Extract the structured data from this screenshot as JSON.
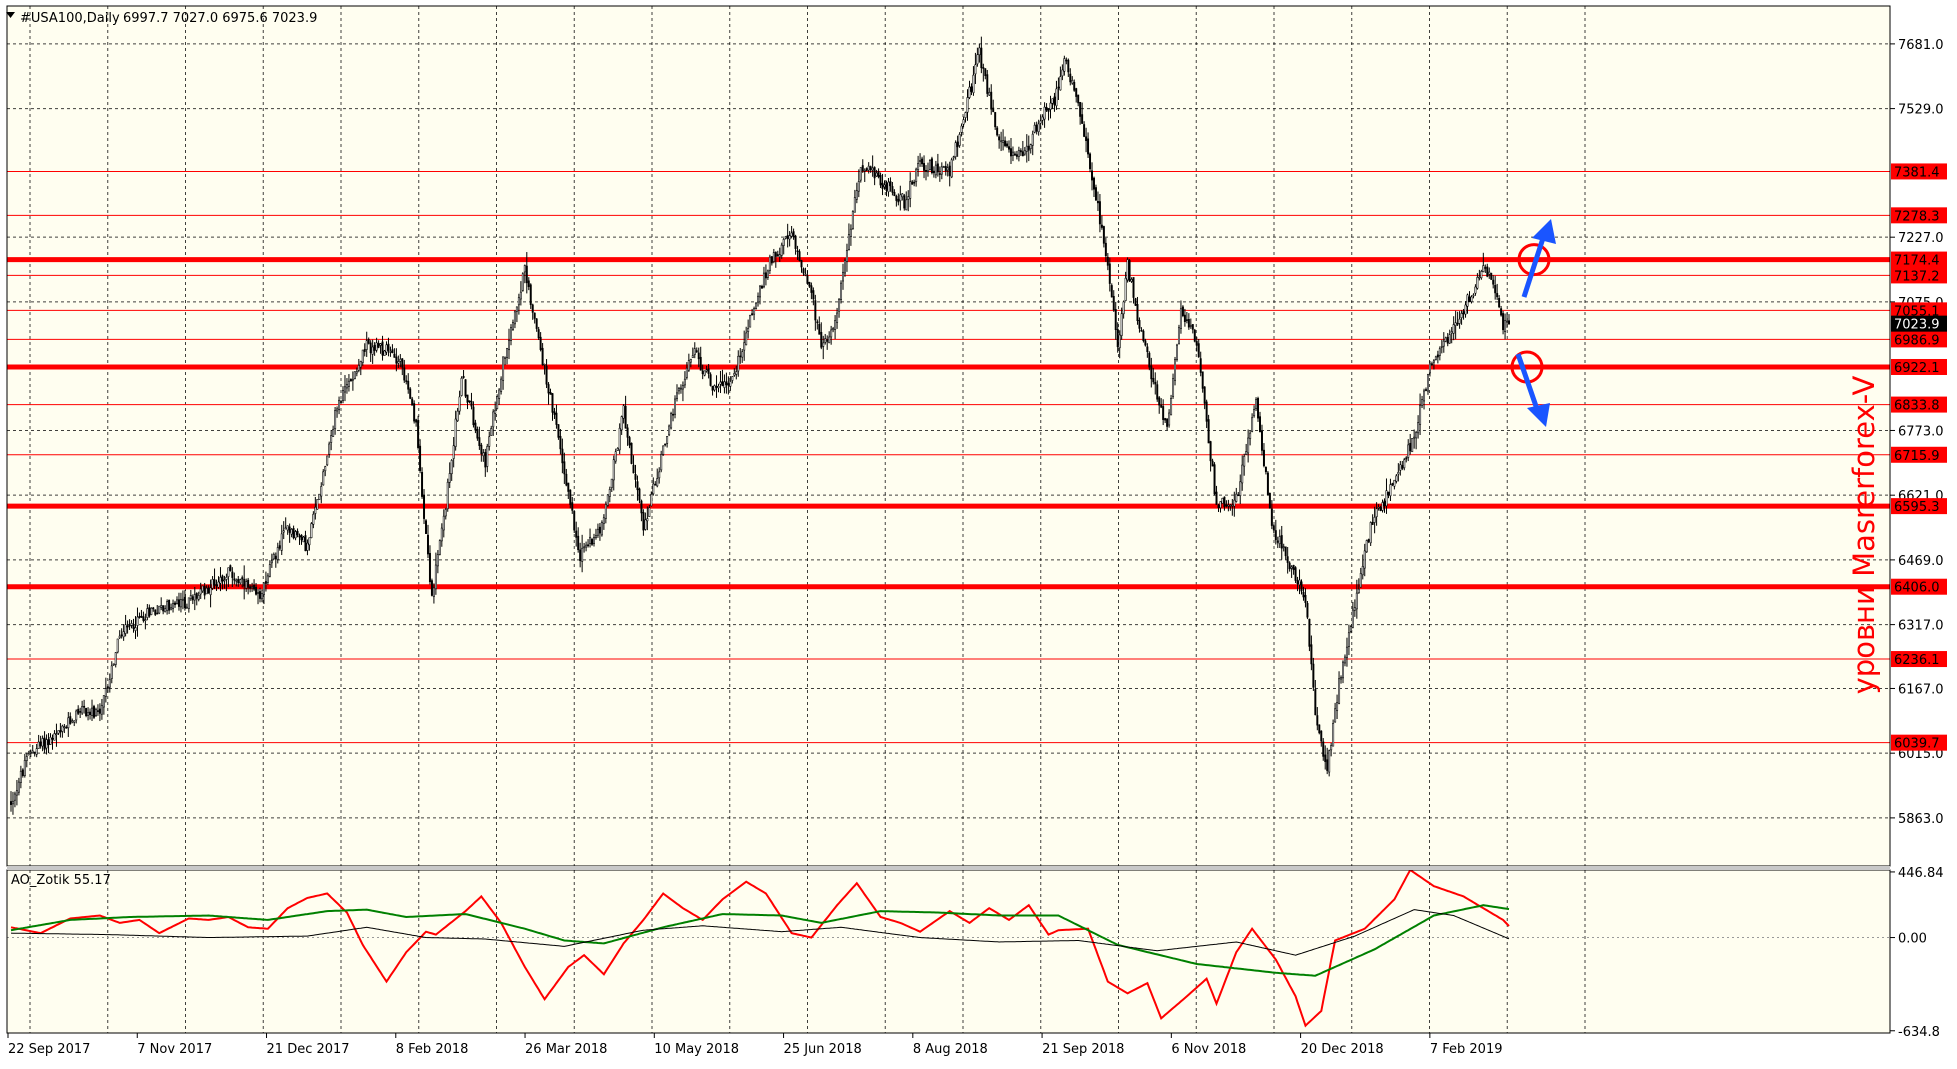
{
  "header": {
    "symbol": "#USA100,Daily",
    "ohlc": "6997.7 7027.0 6975.6 7023.9"
  },
  "watermark": "уровни Masrerforex-V",
  "colors": {
    "background": "#fffef0",
    "grid": "#000000",
    "level_line": "#ff0000",
    "candle_up": "#ffffff",
    "candle_down": "#000000",
    "arrow": "#1a55ff",
    "ao_red": "#ff0000",
    "ao_green": "#008000",
    "ao_black": "#000000"
  },
  "chart_data": [
    {
      "type": "candlestick",
      "panel": "price",
      "ylim": [
        5750,
        7770
      ],
      "y_ticks": [
        "7681.0",
        "7529.0",
        "7227.0",
        "7075.0",
        "6773.0",
        "6621.0",
        "6469.0",
        "6317.0",
        "6167.0",
        "6015.0",
        "5863.0"
      ],
      "x_labels": [
        "22 Sep 2017",
        "7 Nov 2017",
        "21 Dec 2017",
        "8 Feb 2018",
        "26 Mar 2018",
        "10 May 2018",
        "25 Jun 2018",
        "8 Aug 2018",
        "21 Sep 2018",
        "6 Nov 2018",
        "20 Dec 2018",
        "7 Feb 2019"
      ],
      "levels": [
        {
          "value": 7381.4,
          "label": "7381.4",
          "bold": false
        },
        {
          "value": 7278.3,
          "label": "7278.3",
          "bold": false
        },
        {
          "value": 7174.4,
          "label": "7174.4",
          "bold": true
        },
        {
          "value": 7137.2,
          "label": "7137.2",
          "bold": false
        },
        {
          "value": 7055.1,
          "label": "7055.1",
          "bold": false
        },
        {
          "value": 6986.9,
          "label": "6986.9",
          "bold": false
        },
        {
          "value": 6922.1,
          "label": "6922.1",
          "bold": true
        },
        {
          "value": 6833.8,
          "label": "6833.8",
          "bold": false
        },
        {
          "value": 6715.9,
          "label": "6715.9",
          "bold": false
        },
        {
          "value": 6595.3,
          "label": "6595.3",
          "bold": true
        },
        {
          "value": 6406.0,
          "label": "6406.0",
          "bold": true
        },
        {
          "value": 6236.1,
          "label": "6236.1",
          "bold": false
        },
        {
          "value": 6039.7,
          "label": "6039.7",
          "bold": false
        }
      ],
      "current_price": {
        "value": 7023.9,
        "label": "7023.9"
      },
      "anchors": [
        [
          0,
          5900
        ],
        [
          10,
          6020
        ],
        [
          25,
          6060
        ],
        [
          35,
          6120
        ],
        [
          45,
          6100
        ],
        [
          55,
          6290
        ],
        [
          70,
          6350
        ],
        [
          90,
          6370
        ],
        [
          110,
          6440
        ],
        [
          125,
          6380
        ],
        [
          140,
          6550
        ],
        [
          150,
          6500
        ],
        [
          165,
          6830
        ],
        [
          180,
          6970
        ],
        [
          190,
          6960
        ],
        [
          197,
          6940
        ],
        [
          205,
          6780
        ],
        [
          213,
          6380
        ],
        [
          220,
          6600
        ],
        [
          228,
          6900
        ],
        [
          240,
          6700
        ],
        [
          250,
          6960
        ],
        [
          260,
          7150
        ],
        [
          275,
          6800
        ],
        [
          288,
          6480
        ],
        [
          300,
          6560
        ],
        [
          310,
          6820
        ],
        [
          320,
          6540
        ],
        [
          335,
          6820
        ],
        [
          345,
          6960
        ],
        [
          355,
          6880
        ],
        [
          365,
          6890
        ],
        [
          375,
          7050
        ],
        [
          385,
          7180
        ],
        [
          395,
          7230
        ],
        [
          405,
          7100
        ],
        [
          410,
          6960
        ],
        [
          418,
          7050
        ],
        [
          430,
          7400
        ],
        [
          440,
          7360
        ],
        [
          452,
          7310
        ],
        [
          460,
          7400
        ],
        [
          475,
          7380
        ],
        [
          480,
          7470
        ],
        [
          490,
          7660
        ],
        [
          500,
          7450
        ],
        [
          512,
          7410
        ],
        [
          520,
          7500
        ],
        [
          528,
          7550
        ],
        [
          533,
          7650
        ],
        [
          540,
          7530
        ],
        [
          548,
          7350
        ],
        [
          555,
          7150
        ],
        [
          560,
          6970
        ],
        [
          565,
          7160
        ],
        [
          572,
          7000
        ],
        [
          580,
          6850
        ],
        [
          585,
          6780
        ],
        [
          592,
          7050
        ],
        [
          600,
          6980
        ],
        [
          610,
          6600
        ],
        [
          620,
          6610
        ],
        [
          630,
          6850
        ],
        [
          638,
          6550
        ],
        [
          648,
          6450
        ],
        [
          655,
          6380
        ],
        [
          660,
          6100
        ],
        [
          666,
          5980
        ],
        [
          672,
          6180
        ],
        [
          678,
          6320
        ],
        [
          688,
          6550
        ],
        [
          700,
          6650
        ],
        [
          710,
          6760
        ],
        [
          718,
          6920
        ],
        [
          728,
          7000
        ],
        [
          735,
          7060
        ],
        [
          745,
          7150
        ],
        [
          750,
          7120
        ],
        [
          755,
          7020
        ],
        [
          758,
          7023.9
        ]
      ],
      "annotations": [
        {
          "type": "circle",
          "at": "7174.4 level"
        },
        {
          "type": "circle",
          "at": "6922.1 level"
        },
        {
          "type": "arrow",
          "direction": "up"
        },
        {
          "type": "arrow",
          "direction": "down"
        }
      ]
    },
    {
      "type": "line",
      "panel": "indicator",
      "title": "AO_Zotik 55.17",
      "ylim": [
        -650,
        460
      ],
      "y_ticks": [
        "446.84",
        "0.00",
        "-634.8"
      ],
      "series": [
        {
          "name": "",
          "color": "#ff0000",
          "anchors": [
            [
              0,
              70
            ],
            [
              15,
              30
            ],
            [
              30,
              130
            ],
            [
              45,
              150
            ],
            [
              55,
              100
            ],
            [
              65,
              120
            ],
            [
              75,
              30
            ],
            [
              90,
              130
            ],
            [
              100,
              120
            ],
            [
              110,
              140
            ],
            [
              120,
              70
            ],
            [
              130,
              60
            ],
            [
              140,
              200
            ],
            [
              150,
              270
            ],
            [
              160,
              300
            ],
            [
              170,
              170
            ],
            [
              178,
              -50
            ],
            [
              190,
              -300
            ],
            [
              200,
              -100
            ],
            [
              210,
              40
            ],
            [
              215,
              20
            ],
            [
              230,
              180
            ],
            [
              238,
              280
            ],
            [
              248,
              100
            ],
            [
              260,
              -200
            ],
            [
              270,
              -420
            ],
            [
              282,
              -200
            ],
            [
              290,
              -120
            ],
            [
              300,
              -250
            ],
            [
              310,
              -40
            ],
            [
              320,
              120
            ],
            [
              330,
              300
            ],
            [
              340,
              200
            ],
            [
              350,
              120
            ],
            [
              360,
              260
            ],
            [
              372,
              380
            ],
            [
              382,
              300
            ],
            [
              395,
              30
            ],
            [
              405,
              0
            ],
            [
              418,
              220
            ],
            [
              428,
              370
            ],
            [
              440,
              140
            ],
            [
              450,
              100
            ],
            [
              460,
              40
            ],
            [
              475,
              180
            ],
            [
              485,
              100
            ],
            [
              495,
              200
            ],
            [
              505,
              120
            ],
            [
              515,
              220
            ],
            [
              525,
              20
            ],
            [
              530,
              50
            ],
            [
              545,
              60
            ],
            [
              555,
              -300
            ],
            [
              565,
              -380
            ],
            [
              575,
              -310
            ],
            [
              582,
              -550
            ],
            [
              595,
              -400
            ],
            [
              605,
              -280
            ],
            [
              610,
              -450
            ],
            [
              620,
              -100
            ],
            [
              628,
              60
            ],
            [
              640,
              -150
            ],
            [
              650,
              -400
            ],
            [
              655,
              -600
            ],
            [
              663,
              -500
            ],
            [
              670,
              -20
            ],
            [
              685,
              60
            ],
            [
              700,
              260
            ],
            [
              708,
              460
            ],
            [
              720,
              350
            ],
            [
              735,
              280
            ],
            [
              745,
              200
            ],
            [
              755,
              120
            ],
            [
              760,
              50
            ]
          ]
        },
        {
          "name": "",
          "color": "#008000",
          "anchors": [
            [
              0,
              50
            ],
            [
              30,
              120
            ],
            [
              60,
              140
            ],
            [
              100,
              150
            ],
            [
              130,
              120
            ],
            [
              160,
              180
            ],
            [
              180,
              190
            ],
            [
              200,
              140
            ],
            [
              230,
              160
            ],
            [
              260,
              60
            ],
            [
              280,
              -20
            ],
            [
              300,
              -40
            ],
            [
              330,
              70
            ],
            [
              360,
              160
            ],
            [
              390,
              150
            ],
            [
              410,
              100
            ],
            [
              440,
              180
            ],
            [
              470,
              170
            ],
            [
              500,
              150
            ],
            [
              530,
              150
            ],
            [
              560,
              -50
            ],
            [
              600,
              -180
            ],
            [
              640,
              -240
            ],
            [
              660,
              -260
            ],
            [
              690,
              -80
            ],
            [
              720,
              150
            ],
            [
              745,
              220
            ],
            [
              760,
              190
            ]
          ]
        },
        {
          "name": "",
          "color": "#000000",
          "anchors": [
            [
              0,
              30
            ],
            [
              50,
              20
            ],
            [
              100,
              0
            ],
            [
              150,
              10
            ],
            [
              180,
              70
            ],
            [
              210,
              0
            ],
            [
              240,
              -10
            ],
            [
              280,
              -60
            ],
            [
              320,
              50
            ],
            [
              350,
              80
            ],
            [
              390,
              40
            ],
            [
              420,
              70
            ],
            [
              460,
              0
            ],
            [
              500,
              -30
            ],
            [
              540,
              -20
            ],
            [
              580,
              -90
            ],
            [
              620,
              -30
            ],
            [
              650,
              -120
            ],
            [
              680,
              10
            ],
            [
              710,
              190
            ],
            [
              730,
              150
            ],
            [
              760,
              -20
            ]
          ]
        }
      ]
    }
  ]
}
